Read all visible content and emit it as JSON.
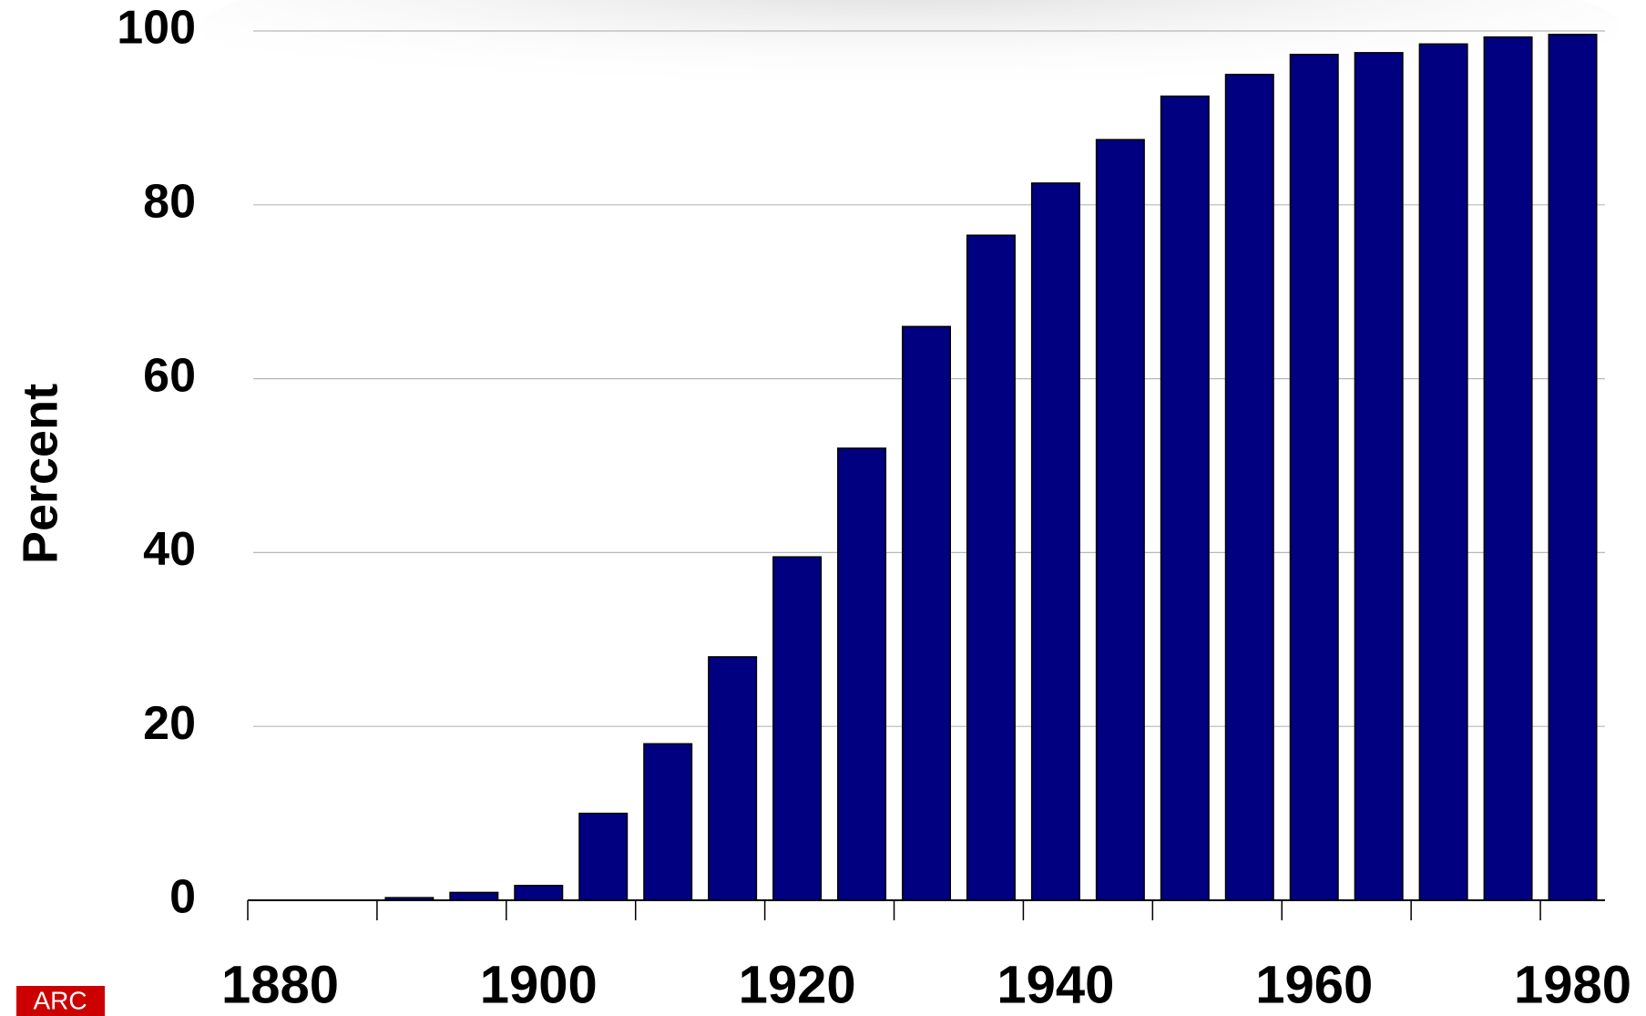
{
  "chart_data": {
    "type": "bar",
    "y_label": "Percent",
    "logo": "ARC",
    "categories": [
      "1880",
      null,
      null,
      null,
      "1900",
      null,
      null,
      null,
      "1920",
      null,
      null,
      null,
      "1940",
      null,
      null,
      null,
      "1960",
      null,
      null,
      null,
      "1980"
    ],
    "values": [
      0,
      0,
      0.3,
      0.9,
      1.7,
      10,
      18,
      28,
      39.5,
      52,
      66,
      76.5,
      82.5,
      87.5,
      92.5,
      95,
      97.3,
      97.5,
      98.5,
      99.3,
      99.6
    ],
    "color": "#000080",
    "ylim": [
      0,
      100
    ],
    "yticks": [
      0,
      20,
      40,
      60,
      80,
      100
    ],
    "grid": true
  }
}
